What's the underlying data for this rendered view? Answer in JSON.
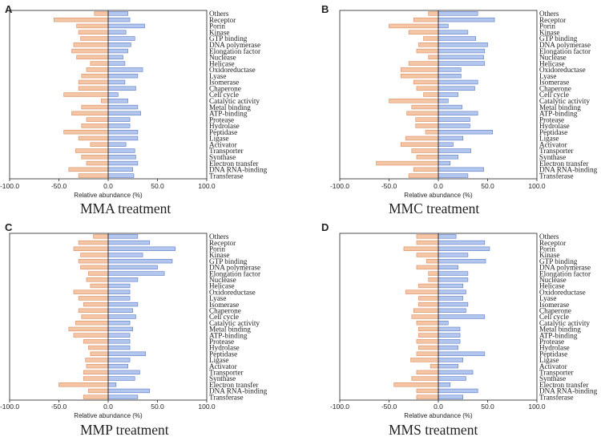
{
  "chart_data": [
    {
      "panel": "A",
      "type": "bar",
      "orientation": "diverging-horizontal",
      "title": "MMA treatment",
      "xlabel": "Relative abundance (%)",
      "xlim": [
        -100,
        100
      ],
      "xticks": [
        "-100.0",
        "-50.0",
        "0.0",
        "50.0",
        "100.0"
      ],
      "categories": [
        "Others",
        "Receptor",
        "Porin",
        "Kinase",
        "GTP binding",
        "DNA polymerase",
        "Elongation factor",
        "Nuclease",
        "Helicase",
        "Oxidoreductase",
        "Lyase",
        "Isomerase",
        "Chaperone",
        "Cell cycle",
        "Catalytic activity",
        "Metal binding",
        "ATP-binding",
        "Protease",
        "Hydrolase",
        "Peptidase",
        "Ligase",
        "Activator",
        "Transporter",
        "Synthase",
        "Electron transfer",
        "DNA RNA-binding",
        "Transferase"
      ],
      "series": [
        {
          "name": "negative",
          "color": "#f5c6a5",
          "values": [
            -14,
            -55,
            -32,
            -30,
            -28,
            -35,
            -37,
            -32,
            -18,
            -22,
            -27,
            -30,
            -30,
            -45,
            -7,
            -27,
            -37,
            -22,
            -27,
            -45,
            -30,
            -18,
            -33,
            -27,
            -22,
            -40,
            -30
          ]
        },
        {
          "name": "positive",
          "color": "#b3c7ee",
          "values": [
            20,
            22,
            37,
            18,
            27,
            23,
            20,
            15,
            17,
            35,
            30,
            17,
            28,
            10,
            20,
            30,
            33,
            22,
            22,
            30,
            30,
            18,
            27,
            28,
            30,
            25,
            26
          ]
        }
      ]
    },
    {
      "panel": "B",
      "type": "bar",
      "orientation": "diverging-horizontal",
      "title": "MMC treatment",
      "xlabel": "Relative abundance (%)",
      "xlim": [
        -100,
        100
      ],
      "xticks": [
        "-100.0",
        "-50.0",
        "0.0",
        "50.0",
        "100.0"
      ],
      "categories": [
        "Others",
        "Receptor",
        "Porin",
        "Kinase",
        "GTP binding",
        "DNA polymerase",
        "Elongation factor",
        "Nuclease",
        "Helicase",
        "Oxidoreductase",
        "Lyase",
        "Isomerase",
        "Chaperone",
        "Cell cycle",
        "Catalytic activity",
        "Metal binding",
        "ATP-binding",
        "Protease",
        "Hydrolase",
        "Peptidase",
        "Ligase",
        "Activator",
        "Transporter",
        "Synthase",
        "Electron transfer",
        "DNA RNA-binding",
        "Transferase"
      ],
      "series": [
        {
          "name": "negative",
          "color": "#f5c6a5",
          "values": [
            -10,
            -25,
            -50,
            -30,
            -15,
            -20,
            -22,
            -10,
            -30,
            -38,
            -38,
            -25,
            -22,
            -15,
            -50,
            -27,
            -32,
            -23,
            -23,
            -13,
            -33,
            -38,
            -27,
            -22,
            -63,
            -25,
            -30
          ]
        },
        {
          "name": "positive",
          "color": "#b3c7ee",
          "values": [
            40,
            57,
            10,
            30,
            38,
            50,
            47,
            46,
            47,
            23,
            23,
            40,
            37,
            20,
            10,
            24,
            40,
            32,
            32,
            55,
            25,
            15,
            33,
            20,
            12,
            46,
            30
          ]
        }
      ]
    },
    {
      "panel": "C",
      "type": "bar",
      "orientation": "diverging-horizontal",
      "title": "MMP treatment",
      "xlabel": "Relative abundance (%)",
      "xlim": [
        -100,
        100
      ],
      "xticks": [
        "-100.0",
        "-50.0",
        "0.0",
        "50.0",
        "100.0"
      ],
      "categories": [
        "Others",
        "Receptor",
        "Porin",
        "Kinase",
        "GTP binding",
        "DNA polymerase",
        "Elongation factor",
        "Nuclease",
        "Helicase",
        "Oxidoreductase",
        "Lyase",
        "Isomerase",
        "Chaperone",
        "Cell cycle",
        "Catalytic activity",
        "Metal binding",
        "ATP-binding",
        "Protease",
        "Hydrolase",
        "Peptidase",
        "Ligase",
        "Activator",
        "Transporter",
        "Synthase",
        "Electron transfer",
        "DNA RNA-binding",
        "Transferase"
      ],
      "series": [
        {
          "name": "negative",
          "color": "#f5c6a5",
          "values": [
            -15,
            -30,
            -35,
            -28,
            -30,
            -28,
            -20,
            -22,
            -18,
            -35,
            -30,
            -25,
            -30,
            -27,
            -33,
            -40,
            -35,
            -25,
            -20,
            -18,
            -23,
            -22,
            -25,
            -25,
            -50,
            -20,
            -25
          ]
        },
        {
          "name": "positive",
          "color": "#b3c7ee",
          "values": [
            30,
            42,
            68,
            35,
            65,
            50,
            57,
            30,
            22,
            22,
            22,
            30,
            25,
            28,
            22,
            25,
            22,
            22,
            22,
            38,
            22,
            20,
            32,
            27,
            8,
            42,
            30
          ]
        }
      ]
    },
    {
      "panel": "D",
      "type": "bar",
      "orientation": "diverging-horizontal",
      "title": "MMS treatment",
      "xlabel": "Relative abundance (%)",
      "xlim": [
        -100,
        100
      ],
      "xticks": [
        "-100.0",
        "-50.0",
        "0.0",
        "50.0",
        "100.0"
      ],
      "categories": [
        "Others",
        "Receptor",
        "Porin",
        "Kinase",
        "GTP binding",
        "DNA polymerase",
        "Elongation factor",
        "Nuclease",
        "Helicase",
        "Oxidoreductase",
        "Lyase",
        "Isomerase",
        "Chaperone",
        "Cell cycle",
        "Catalytic activity",
        "Metal binding",
        "ATP-binding",
        "Protease",
        "Hydrolase",
        "Peptidase",
        "Ligase",
        "Activator",
        "Transporter",
        "Synthase",
        "Electron transfer",
        "DNA RNA-binding",
        "Transferase"
      ],
      "series": [
        {
          "name": "negative",
          "color": "#f5c6a5",
          "values": [
            -22,
            -22,
            -35,
            -22,
            -12,
            -22,
            -10,
            -10,
            -20,
            -33,
            -20,
            -20,
            -25,
            -27,
            -22,
            -20,
            -20,
            -22,
            -20,
            -22,
            -28,
            -8,
            -22,
            -27,
            -45,
            -22,
            -22
          ]
        },
        {
          "name": "positive",
          "color": "#b3c7ee",
          "values": [
            18,
            47,
            52,
            30,
            48,
            20,
            30,
            30,
            25,
            28,
            25,
            30,
            28,
            47,
            10,
            22,
            22,
            22,
            20,
            47,
            25,
            20,
            35,
            28,
            12,
            40,
            25
          ]
        }
      ]
    }
  ]
}
